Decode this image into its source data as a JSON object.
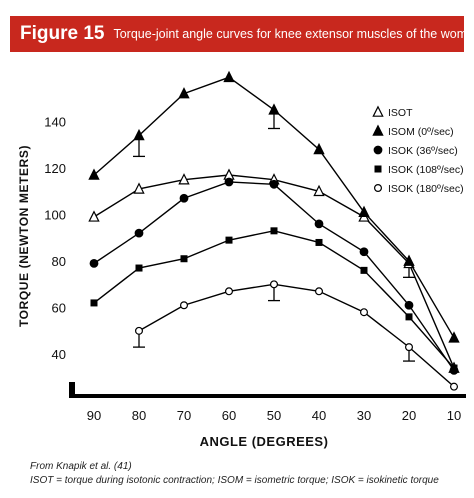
{
  "banner": {
    "figure_label": "Figure 15",
    "title": "Torque-joint angle curves for knee extensor muscles of the women",
    "background_color": "#c8281e"
  },
  "chart_data": {
    "type": "line",
    "title": "Torque-joint angle curves for knee extensor muscles of the women",
    "xlabel": "ANGLE (DEGREES)",
    "ylabel": "TORQUE (NEWTON METERS)",
    "x": [
      90,
      80,
      70,
      60,
      50,
      40,
      30,
      20,
      10
    ],
    "x_direction": "descending",
    "xlim": [
      90,
      10
    ],
    "ylim": [
      28,
      160
    ],
    "yticks": [
      40,
      60,
      80,
      100,
      120,
      140
    ],
    "grid": false,
    "legend_position": "upper-right",
    "series": [
      {
        "name": "ISOT",
        "marker": "open-triangle",
        "x": [
          90,
          80,
          70,
          60,
          50,
          40,
          30,
          20,
          10
        ],
        "values": [
          99,
          111,
          115,
          117,
          115,
          110,
          99,
          79,
          34
        ]
      },
      {
        "name": "ISOM (0º/sec)",
        "marker": "filled-triangle",
        "x": [
          90,
          80,
          70,
          60,
          50,
          40,
          30,
          20,
          10
        ],
        "values": [
          117,
          134,
          152,
          159,
          145,
          128,
          101,
          80,
          47
        ]
      },
      {
        "name": "ISOK (36º/sec)",
        "marker": "filled-circle",
        "x": [
          90,
          80,
          70,
          60,
          50,
          40,
          30,
          20,
          10
        ],
        "values": [
          79,
          92,
          107,
          114,
          113,
          96,
          84,
          61,
          33
        ]
      },
      {
        "name": "ISOK (108º/sec)",
        "marker": "filled-square",
        "x": [
          90,
          80,
          70,
          60,
          50,
          40,
          30,
          20,
          10
        ],
        "values": [
          62,
          77,
          81,
          89,
          93,
          88,
          76,
          56,
          34
        ]
      },
      {
        "name": "ISOK (180º/sec)",
        "marker": "open-circle",
        "x": [
          80,
          70,
          60,
          50,
          40,
          30,
          20,
          10
        ],
        "values": [
          50,
          61,
          67,
          70,
          67,
          58,
          43,
          26
        ]
      }
    ],
    "error_bars": [
      {
        "x": 80,
        "from": 134,
        "to": 125,
        "direction": "down"
      },
      {
        "x": 50,
        "from": 145,
        "to": 137,
        "direction": "down"
      },
      {
        "x": 20,
        "from": 80,
        "to": 73,
        "direction": "down"
      },
      {
        "x": 80,
        "from": 50,
        "to": 43,
        "direction": "down"
      },
      {
        "x": 50,
        "from": 70,
        "to": 63,
        "direction": "down"
      },
      {
        "x": 20,
        "from": 43,
        "to": 37,
        "direction": "down"
      }
    ]
  },
  "source": {
    "citation": "From Knapik et al. (41)",
    "note": "ISOT = torque during isotonic contraction; ISOM = isometric torque; ISOK = isokinetic torque"
  }
}
